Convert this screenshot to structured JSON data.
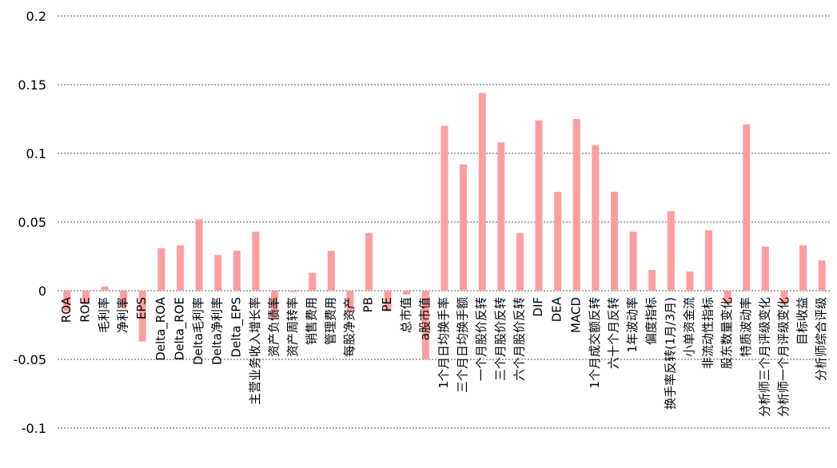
{
  "chart_data": {
    "type": "bar",
    "categories": [
      "ROA",
      "ROE",
      "毛利率",
      "净利率",
      "EPS",
      "Delta_ROA",
      "Delta_ROE",
      "Delta毛利率",
      "Delta净利率",
      "Delta_EPS",
      "主营业务收入增长率",
      "资产负债率",
      "资产周转率",
      "销售费用",
      "管理费用",
      "每股净资产",
      "PB",
      "PE",
      "总市值",
      "a股市值",
      "1个月日均换手率",
      "三个月日均换手额",
      "一个月股价反转",
      "三个月股价反转",
      "六个月股价反转",
      "DIF",
      "DEA",
      "MACD",
      "1个月成交额反转",
      "六十个月反转",
      "1年波动率",
      "偏度指标",
      "换手率反转(1月/3月)",
      "小单资金流",
      "非流动性指标",
      "股东数量变化",
      "特质波动率",
      "分析师三个月评级变化",
      "分析师一个月评级变化",
      "目标收益",
      "分析师综合评级"
    ],
    "values": [
      -0.015,
      -0.01,
      0.003,
      -0.012,
      -0.037,
      0.031,
      0.033,
      0.052,
      0.026,
      0.029,
      0.043,
      -0.02,
      -0.001,
      0.013,
      0.029,
      -0.015,
      0.042,
      -0.015,
      -0.003,
      -0.05,
      0.12,
      0.092,
      0.144,
      0.108,
      0.042,
      0.124,
      0.072,
      0.125,
      0.106,
      0.072,
      0.043,
      0.015,
      0.058,
      0.014,
      0.044,
      -0.01,
      0.121,
      0.032,
      -0.01,
      0.033,
      0.022
    ],
    "color": "#ff9e9e",
    "ylim": [
      -0.1,
      0.2
    ],
    "yticks": [
      -0.1,
      -0.05,
      0,
      0.05,
      0.1,
      0.15,
      0.2
    ],
    "grid": true
  }
}
